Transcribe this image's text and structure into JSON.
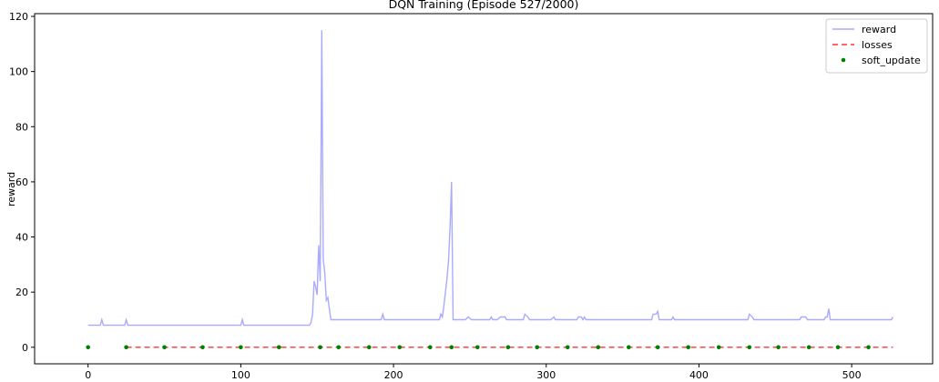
{
  "chart_data": {
    "type": "line",
    "title": "DQN Training (Episode 527/2000)",
    "xlabel": "",
    "ylabel": "reward",
    "xlim": [
      -35,
      553
    ],
    "ylim": [
      -6,
      121
    ],
    "xticks": [
      0,
      100,
      200,
      300,
      400,
      500
    ],
    "yticks": [
      0,
      20,
      40,
      60,
      80,
      100,
      120
    ],
    "grid": false,
    "legend_position": "top-right",
    "series": [
      {
        "name": "reward",
        "style": "line",
        "color": "#aaaaff",
        "points": [
          [
            0,
            8
          ],
          [
            8,
            8
          ],
          [
            9,
            10
          ],
          [
            10,
            8
          ],
          [
            24,
            8
          ],
          [
            25,
            10
          ],
          [
            26,
            8
          ],
          [
            100,
            8
          ],
          [
            101,
            10
          ],
          [
            102,
            8
          ],
          [
            145,
            8
          ],
          [
            146,
            9
          ],
          [
            147,
            12
          ],
          [
            148,
            24
          ],
          [
            149,
            22
          ],
          [
            150,
            19
          ],
          [
            151,
            37
          ],
          [
            152,
            24
          ],
          [
            153,
            115
          ],
          [
            154,
            32
          ],
          [
            155,
            27
          ],
          [
            156,
            17
          ],
          [
            157,
            18
          ],
          [
            158,
            14
          ],
          [
            159,
            10
          ],
          [
            192,
            10
          ],
          [
            193,
            12
          ],
          [
            194,
            10
          ],
          [
            230,
            10
          ],
          [
            231,
            12
          ],
          [
            232,
            11
          ],
          [
            233,
            15
          ],
          [
            234,
            20
          ],
          [
            235,
            25
          ],
          [
            236,
            31
          ],
          [
            237,
            43
          ],
          [
            238,
            60
          ],
          [
            239,
            10
          ],
          [
            247,
            10
          ],
          [
            249,
            11
          ],
          [
            251,
            10
          ],
          [
            263,
            10
          ],
          [
            264,
            11
          ],
          [
            265,
            10
          ],
          [
            268,
            10
          ],
          [
            270,
            11
          ],
          [
            273,
            11
          ],
          [
            274,
            10
          ],
          [
            285,
            10
          ],
          [
            286,
            12
          ],
          [
            288,
            11
          ],
          [
            289,
            10
          ],
          [
            303,
            10
          ],
          [
            305,
            11
          ],
          [
            306,
            10
          ],
          [
            320,
            10
          ],
          [
            321,
            11
          ],
          [
            323,
            11
          ],
          [
            324,
            10
          ],
          [
            325,
            11
          ],
          [
            326,
            10
          ],
          [
            369,
            10
          ],
          [
            370,
            12
          ],
          [
            372,
            12
          ],
          [
            373,
            13
          ],
          [
            374,
            10
          ],
          [
            382,
            10
          ],
          [
            383,
            11
          ],
          [
            384,
            10
          ],
          [
            432,
            10
          ],
          [
            433,
            12
          ],
          [
            435,
            11
          ],
          [
            436,
            10
          ],
          [
            466,
            10
          ],
          [
            467,
            11
          ],
          [
            470,
            11
          ],
          [
            471,
            10
          ],
          [
            482,
            10
          ],
          [
            483,
            11
          ],
          [
            484,
            11
          ],
          [
            485,
            14
          ],
          [
            486,
            10
          ],
          [
            526,
            10
          ],
          [
            527,
            11
          ]
        ]
      },
      {
        "name": "losses",
        "style": "dashed",
        "color": "#ff0000",
        "points": [
          [
            25,
            0
          ],
          [
            527,
            0
          ]
        ]
      },
      {
        "name": "soft_update",
        "style": "dots",
        "color": "#008000",
        "points": [
          [
            0,
            0
          ],
          [
            25,
            0
          ],
          [
            50,
            0
          ],
          [
            75,
            0
          ],
          [
            100,
            0
          ],
          [
            125,
            0
          ],
          [
            152,
            0
          ],
          [
            164,
            0
          ],
          [
            184,
            0
          ],
          [
            204,
            0
          ],
          [
            224,
            0
          ],
          [
            238,
            0
          ],
          [
            255,
            0
          ],
          [
            275,
            0
          ],
          [
            294,
            0
          ],
          [
            314,
            0
          ],
          [
            334,
            0
          ],
          [
            354,
            0
          ],
          [
            373,
            0
          ],
          [
            393,
            0
          ],
          [
            413,
            0
          ],
          [
            433,
            0
          ],
          [
            452,
            0
          ],
          [
            472,
            0
          ],
          [
            491,
            0
          ],
          [
            511,
            0
          ]
        ]
      }
    ]
  }
}
